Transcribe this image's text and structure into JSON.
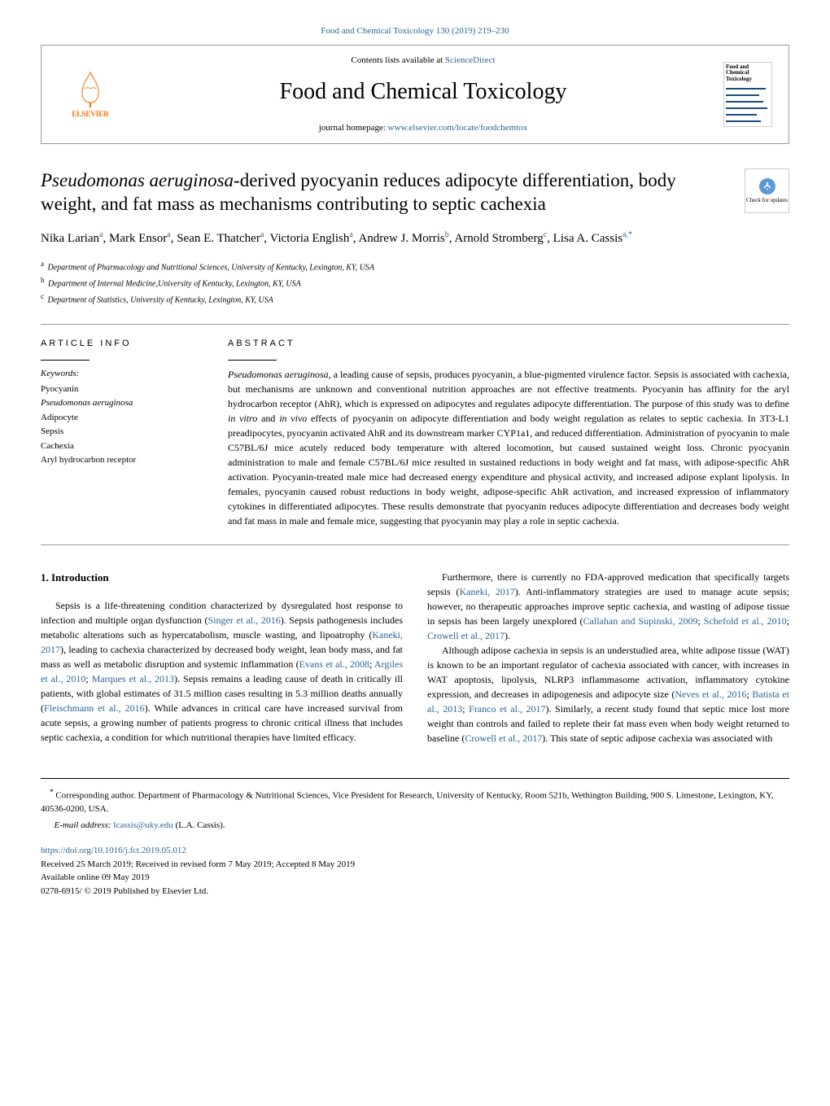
{
  "journal_citation": "Food and Chemical Toxicology 130 (2019) 219–230",
  "header": {
    "contents_text": "Contents lists available at ",
    "contents_link": "ScienceDirect",
    "journal_title": "Food and Chemical Toxicology",
    "homepage_text": "journal homepage: ",
    "homepage_link": "www.elsevier.com/locate/foodchemtox",
    "publisher": "ELSEVIER",
    "cover_title": "Food and Chemical Toxicology"
  },
  "updates_badge": "Check for updates",
  "article": {
    "title_species": "Pseudomonas aeruginosa",
    "title_rest": "-derived pyocyanin reduces adipocyte differentiation, body weight, and fat mass as mechanisms contributing to septic cachexia",
    "authors_html": "Nika Larian<sup>a</sup>, Mark Ensor<sup>a</sup>, Sean E. Thatcher<sup>a</sup>, Victoria English<sup>a</sup>, Andrew J. Morris<sup>b</sup>, Arnold Stromberg<sup>c</sup>, Lisa A. Cassis<sup>a,*</sup>",
    "affiliations": [
      {
        "sup": "a",
        "text": "Department of Pharmacology and Nutritional Sciences, University of Kentucky, Lexington, KY, USA"
      },
      {
        "sup": "b",
        "text": "Department of Internal Medicine,University of Kentucky, Lexington, KY, USA"
      },
      {
        "sup": "c",
        "text": "Department of Statistics, University of Kentucky, Lexington, KY, USA"
      }
    ]
  },
  "article_info": {
    "header": "ARTICLE INFO",
    "keywords_label": "Keywords:",
    "keywords": [
      {
        "text": "Pyocyanin",
        "italic": false
      },
      {
        "text": "Pseudomonas aeruginosa",
        "italic": true
      },
      {
        "text": "Adipocyte",
        "italic": false
      },
      {
        "text": "Sepsis",
        "italic": false
      },
      {
        "text": "Cachexia",
        "italic": false
      },
      {
        "text": "Aryl hydrocarbon receptor",
        "italic": false
      }
    ]
  },
  "abstract": {
    "header": "ABSTRACT",
    "text_parts": [
      {
        "text": "Pseudomonas aeruginosa",
        "italic": true
      },
      {
        "text": ", a leading cause of sepsis, produces pyocyanin, a blue-pigmented virulence factor. Sepsis is associated with cachexia, but mechanisms are unknown and conventional nutrition approaches are not effective treatments. Pyocyanin has affinity for the aryl hydrocarbon receptor (AhR), which is expressed on adipocytes and regulates adipocyte differentiation. The purpose of this study was to define ",
        "italic": false
      },
      {
        "text": "in vitro",
        "italic": true
      },
      {
        "text": " and ",
        "italic": false
      },
      {
        "text": "in vivo",
        "italic": true
      },
      {
        "text": " effects of pyocyanin on adipocyte differentiation and body weight regulation as relates to septic cachexia. In 3T3-L1 preadipocytes, pyocyanin activated AhR and its downstream marker CYP1a1, and reduced differentiation. Administration of pyocyanin to male C57BL/6J mice acutely reduced body temperature with altered locomotion, but caused sustained weight loss. Chronic pyocyanin administration to male and female C57BL/6J mice resulted in sustained reductions in body weight and fat mass, with adipose-specific AhR activation. Pyocyanin-treated male mice had decreased energy expenditure and physical activity, and increased adipose explant lipolysis. In females, pyocyanin caused robust reductions in body weight, adipose-specific AhR activation, and increased expression of inflammatory cytokines in differentiated adipocytes. These results demonstrate that pyocyanin reduces adipocyte differentiation and decreases body weight and fat mass in male and female mice, suggesting that pyocyanin may play a role in septic cachexia.",
        "italic": false
      }
    ]
  },
  "introduction": {
    "heading": "1. Introduction",
    "para1": "Sepsis is a life-threatening condition characterized by dysregulated host response to infection and multiple organ dysfunction (Singer et al., 2016). Sepsis pathogenesis includes metabolic alterations such as hypercatabolism, muscle wasting, and lipoatrophy (Kaneki, 2017), leading to cachexia characterized by decreased body weight, lean body mass, and fat mass as well as metabolic disruption and systemic inflammation (Evans et al., 2008; Argiles et al., 2010; Marques et al., 2013). Sepsis remains a leading cause of death in critically ill patients, with global estimates of 31.5 million cases resulting in 5.3 million deaths annually (Fleischmann et al., 2016). While advances in critical care have increased survival from acute sepsis, a growing number of patients progress to chronic critical illness that includes septic cachexia, a condition for which nutritional therapies have limited efficacy.",
    "para2": "Furthermore, there is currently no FDA-approved medication that specifically targets sepsis (Kaneki, 2017). Anti-inflammatory strategies are used to manage acute sepsis; however, no therapeutic approaches improve septic cachexia, and wasting of adipose tissue in sepsis has been largely unexplored (Callahan and Supinski, 2009; Schefold et al., 2010; Crowell et al., 2017).",
    "para3": "Although adipose cachexia in sepsis is an understudied area, white adipose tissue (WAT) is known to be an important regulator of cachexia associated with cancer, with increases in WAT apoptosis, lipolysis, NLRP3 inflammasome activation, inflammatory cytokine expression, and decreases in adipogenesis and adipocyte size (Neves et al., 2016; Batista et al., 2013; Franco et al., 2017). Similarly, a recent study found that septic mice lost more weight than controls and failed to replete their fat mass even when body weight returned to baseline (Crowell et al., 2017). This state of septic adipose cachexia was associated with",
    "refs": [
      "Singer et al., 2016",
      "Kaneki, 2017",
      "Evans et al., 2008",
      "Argiles et al., 2010",
      "Marques et al., 2013",
      "Fleischmann et al., 2016",
      "Kaneki, 2017",
      "Callahan and Supinski, 2009",
      "Schefold et al., 2010",
      "Crowell et al., 2017",
      "Neves et al., 2016",
      "Batista et al., 2013",
      "Franco et al., 2017",
      "Crowell et al., 2017"
    ]
  },
  "footnote": {
    "corresp_marker": "*",
    "corresp_text": "Corresponding author. Department of Pharmacology & Nutritional Sciences, Vice President for Research, University of Kentucky, Room 521b, Wethington Building, 900 S. Limestone, Lexington, KY, 40536-0200, USA.",
    "email_label": "E-mail address: ",
    "email": "lcassis@uky.edu",
    "email_name": " (L.A. Cassis)."
  },
  "footer": {
    "doi": "https://doi.org/10.1016/j.fct.2019.05.012",
    "received": "Received 25 March 2019; Received in revised form 7 May 2019; Accepted 8 May 2019",
    "available": "Available online 09 May 2019",
    "copyright": "0278-6915/ © 2019 Published by Elsevier Ltd."
  },
  "colors": {
    "link": "#2a6496",
    "elsevier": "#ff6c00",
    "border": "#999999"
  }
}
